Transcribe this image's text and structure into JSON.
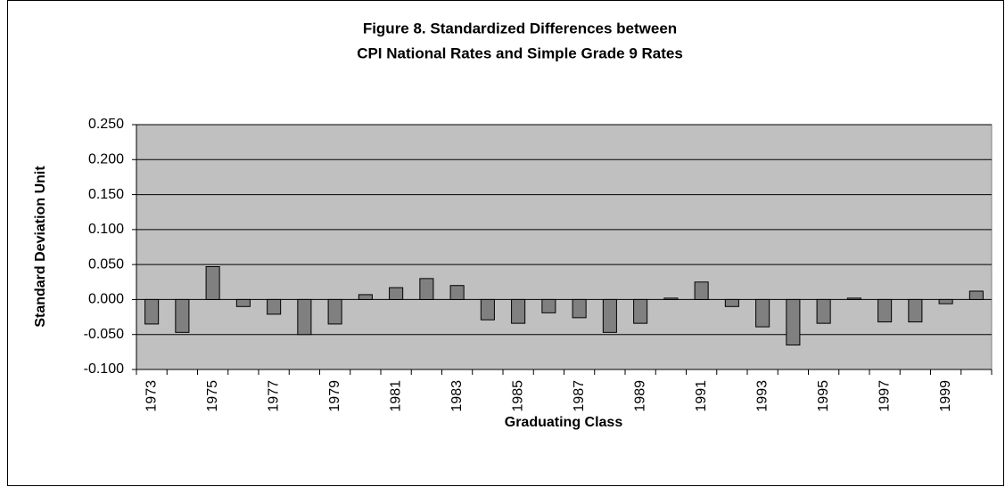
{
  "chart_data": {
    "type": "bar",
    "title": [
      "Figure 8. Standardized Differences between",
      "CPI National Rates and Simple Grade 9 Rates"
    ],
    "x_label": "Graduating Class",
    "y_label": "Standard Deviation Unit",
    "categories": [
      "1973",
      null,
      "1975",
      null,
      "1977",
      null,
      "1979",
      null,
      "1981",
      null,
      "1983",
      null,
      "1985",
      null,
      "1987",
      null,
      "1989",
      null,
      "1991",
      null,
      "1993",
      null,
      "1995",
      null,
      "1997",
      null,
      "1999",
      null
    ],
    "values": [
      -0.035,
      -0.047,
      0.047,
      -0.01,
      -0.021,
      -0.05,
      -0.035,
      0.007,
      0.017,
      0.03,
      0.02,
      -0.029,
      -0.034,
      -0.019,
      -0.026,
      -0.047,
      -0.034,
      0.002,
      0.025,
      -0.01,
      -0.039,
      -0.065,
      -0.034,
      0.002,
      -0.032,
      -0.032,
      -0.006,
      0.012
    ],
    "color": "#808080",
    "ylim": [
      -0.1,
      0.25
    ],
    "yticks": [
      {
        "value": -0.1,
        "label": "-0.100"
      },
      {
        "value": -0.05,
        "label": "-0.050"
      },
      {
        "value": 0,
        "label": "0.000"
      },
      {
        "value": 0.05,
        "label": "0.050"
      },
      {
        "value": 0.1,
        "label": "0.100"
      },
      {
        "value": 0.15,
        "label": "0.150"
      },
      {
        "value": 0.2,
        "label": "0.200"
      },
      {
        "value": 0.25,
        "label": "0.250"
      }
    ],
    "grid": true
  }
}
